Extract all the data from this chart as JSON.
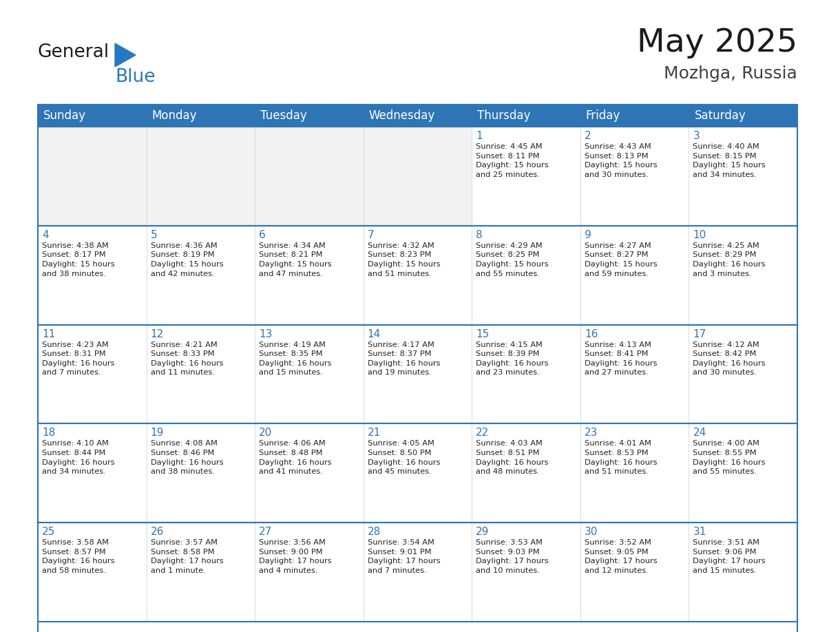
{
  "title": "May 2025",
  "subtitle": "Mozhga, Russia",
  "header_color": "#2E75B6",
  "header_text_color": "#FFFFFF",
  "cell_bg_color": "#FFFFFF",
  "cell_alt_bg_color": "#F2F2F2",
  "cell_border_color": "#2E75B6",
  "day_number_color": "#2E75B6",
  "cell_text_color": "#222222",
  "line_color": "#2E75B6",
  "days_of_week": [
    "Sunday",
    "Monday",
    "Tuesday",
    "Wednesday",
    "Thursday",
    "Friday",
    "Saturday"
  ],
  "weeks": [
    [
      {
        "day": "",
        "text": ""
      },
      {
        "day": "",
        "text": ""
      },
      {
        "day": "",
        "text": ""
      },
      {
        "day": "",
        "text": ""
      },
      {
        "day": "1",
        "text": "Sunrise: 4:45 AM\nSunset: 8:11 PM\nDaylight: 15 hours\nand 25 minutes."
      },
      {
        "day": "2",
        "text": "Sunrise: 4:43 AM\nSunset: 8:13 PM\nDaylight: 15 hours\nand 30 minutes."
      },
      {
        "day": "3",
        "text": "Sunrise: 4:40 AM\nSunset: 8:15 PM\nDaylight: 15 hours\nand 34 minutes."
      }
    ],
    [
      {
        "day": "4",
        "text": "Sunrise: 4:38 AM\nSunset: 8:17 PM\nDaylight: 15 hours\nand 38 minutes."
      },
      {
        "day": "5",
        "text": "Sunrise: 4:36 AM\nSunset: 8:19 PM\nDaylight: 15 hours\nand 42 minutes."
      },
      {
        "day": "6",
        "text": "Sunrise: 4:34 AM\nSunset: 8:21 PM\nDaylight: 15 hours\nand 47 minutes."
      },
      {
        "day": "7",
        "text": "Sunrise: 4:32 AM\nSunset: 8:23 PM\nDaylight: 15 hours\nand 51 minutes."
      },
      {
        "day": "8",
        "text": "Sunrise: 4:29 AM\nSunset: 8:25 PM\nDaylight: 15 hours\nand 55 minutes."
      },
      {
        "day": "9",
        "text": "Sunrise: 4:27 AM\nSunset: 8:27 PM\nDaylight: 15 hours\nand 59 minutes."
      },
      {
        "day": "10",
        "text": "Sunrise: 4:25 AM\nSunset: 8:29 PM\nDaylight: 16 hours\nand 3 minutes."
      }
    ],
    [
      {
        "day": "11",
        "text": "Sunrise: 4:23 AM\nSunset: 8:31 PM\nDaylight: 16 hours\nand 7 minutes."
      },
      {
        "day": "12",
        "text": "Sunrise: 4:21 AM\nSunset: 8:33 PM\nDaylight: 16 hours\nand 11 minutes."
      },
      {
        "day": "13",
        "text": "Sunrise: 4:19 AM\nSunset: 8:35 PM\nDaylight: 16 hours\nand 15 minutes."
      },
      {
        "day": "14",
        "text": "Sunrise: 4:17 AM\nSunset: 8:37 PM\nDaylight: 16 hours\nand 19 minutes."
      },
      {
        "day": "15",
        "text": "Sunrise: 4:15 AM\nSunset: 8:39 PM\nDaylight: 16 hours\nand 23 minutes."
      },
      {
        "day": "16",
        "text": "Sunrise: 4:13 AM\nSunset: 8:41 PM\nDaylight: 16 hours\nand 27 minutes."
      },
      {
        "day": "17",
        "text": "Sunrise: 4:12 AM\nSunset: 8:42 PM\nDaylight: 16 hours\nand 30 minutes."
      }
    ],
    [
      {
        "day": "18",
        "text": "Sunrise: 4:10 AM\nSunset: 8:44 PM\nDaylight: 16 hours\nand 34 minutes."
      },
      {
        "day": "19",
        "text": "Sunrise: 4:08 AM\nSunset: 8:46 PM\nDaylight: 16 hours\nand 38 minutes."
      },
      {
        "day": "20",
        "text": "Sunrise: 4:06 AM\nSunset: 8:48 PM\nDaylight: 16 hours\nand 41 minutes."
      },
      {
        "day": "21",
        "text": "Sunrise: 4:05 AM\nSunset: 8:50 PM\nDaylight: 16 hours\nand 45 minutes."
      },
      {
        "day": "22",
        "text": "Sunrise: 4:03 AM\nSunset: 8:51 PM\nDaylight: 16 hours\nand 48 minutes."
      },
      {
        "day": "23",
        "text": "Sunrise: 4:01 AM\nSunset: 8:53 PM\nDaylight: 16 hours\nand 51 minutes."
      },
      {
        "day": "24",
        "text": "Sunrise: 4:00 AM\nSunset: 8:55 PM\nDaylight: 16 hours\nand 55 minutes."
      }
    ],
    [
      {
        "day": "25",
        "text": "Sunrise: 3:58 AM\nSunset: 8:57 PM\nDaylight: 16 hours\nand 58 minutes."
      },
      {
        "day": "26",
        "text": "Sunrise: 3:57 AM\nSunset: 8:58 PM\nDaylight: 17 hours\nand 1 minute."
      },
      {
        "day": "27",
        "text": "Sunrise: 3:56 AM\nSunset: 9:00 PM\nDaylight: 17 hours\nand 4 minutes."
      },
      {
        "day": "28",
        "text": "Sunrise: 3:54 AM\nSunset: 9:01 PM\nDaylight: 17 hours\nand 7 minutes."
      },
      {
        "day": "29",
        "text": "Sunrise: 3:53 AM\nSunset: 9:03 PM\nDaylight: 17 hours\nand 10 minutes."
      },
      {
        "day": "30",
        "text": "Sunrise: 3:52 AM\nSunset: 9:05 PM\nDaylight: 17 hours\nand 12 minutes."
      },
      {
        "day": "31",
        "text": "Sunrise: 3:51 AM\nSunset: 9:06 PM\nDaylight: 17 hours\nand 15 minutes."
      }
    ]
  ],
  "logo_color_general": "#1a1a1a",
  "logo_color_blue": "#2479C2",
  "logo_triangle_color": "#2479C2",
  "title_fontsize": 34,
  "subtitle_fontsize": 18,
  "header_fontsize": 12,
  "day_num_fontsize": 11,
  "cell_text_fontsize": 8.2
}
